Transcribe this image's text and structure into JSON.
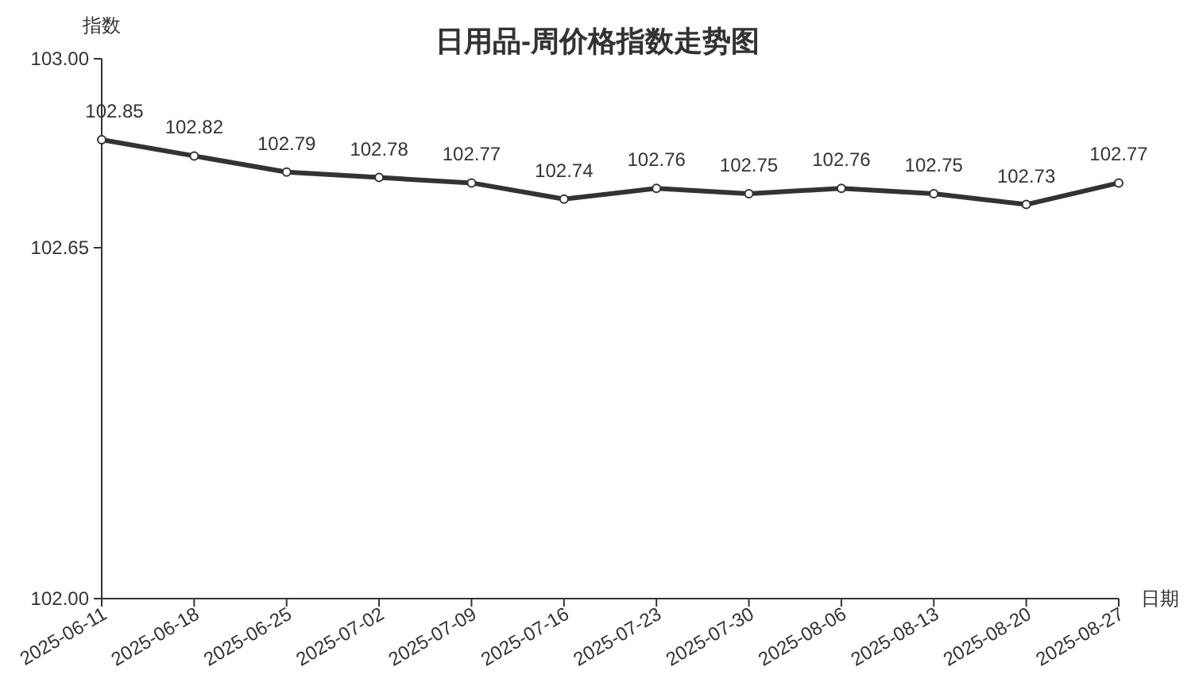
{
  "chart_data": {
    "type": "line",
    "title": "日用品-周价格指数走势图",
    "xlabel": "日期",
    "ylabel": "指数",
    "categories": [
      "2025-06-11",
      "2025-06-18",
      "2025-06-25",
      "2025-07-02",
      "2025-07-09",
      "2025-07-16",
      "2025-07-23",
      "2025-07-30",
      "2025-08-06",
      "2025-08-13",
      "2025-08-20",
      "2025-08-27"
    ],
    "series": [
      {
        "color": "#333333",
        "values": [
          102.85,
          102.82,
          102.79,
          102.78,
          102.77,
          102.74,
          102.76,
          102.75,
          102.76,
          102.75,
          102.73,
          102.77
        ]
      }
    ],
    "ylim": [
      102,
      103
    ],
    "yticks": [
      {
        "value": 102,
        "label": "102.00"
      },
      {
        "value": 102.65,
        "label": "102.65"
      },
      {
        "value": 103,
        "label": "103.00"
      }
    ],
    "marker": "circle",
    "line_style": "solid",
    "data_labels": true,
    "grid": false
  }
}
